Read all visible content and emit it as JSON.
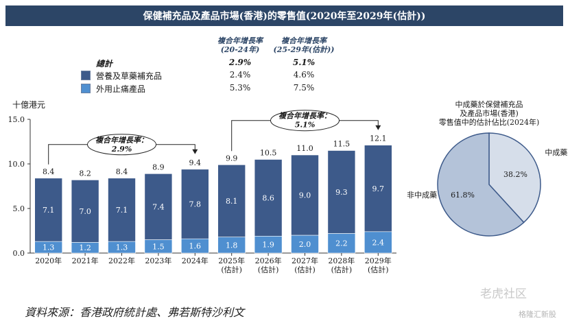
{
  "header": {
    "title": "保健補充品及產品市場(香港)的零售值(2020年至2029年(估計))"
  },
  "legend_table": {
    "col1_header": "複合年增長率\n(20-24年)",
    "col2_header": "複合年增長率\n(25-29年(估計))",
    "rows": [
      {
        "label": "總計",
        "cagr_20_24": "2.9%",
        "cagr_25_29": "5.1%"
      },
      {
        "label": "營養及草藥補充品",
        "cagr_20_24": "2.4%",
        "cagr_25_29": "4.6%",
        "color": "#3d5a8a"
      },
      {
        "label": "外用止痛產品",
        "cagr_20_24": "5.3%",
        "cagr_25_29": "7.5%",
        "color": "#4f8fd0"
      }
    ]
  },
  "chart_data": [
    {
      "type": "bar",
      "stacked": true,
      "ylabel": "十億港元",
      "ylim": [
        0,
        15
      ],
      "yticks": [
        "0.0",
        "5.0",
        "10.0",
        "15.0"
      ],
      "categories": [
        "2020年",
        "2021年",
        "2022年",
        "2023年",
        "2024年",
        "2025年\n(估計)",
        "2026年\n(估計)",
        "2027年\n(估計)",
        "2028年\n(估計)",
        "2029年\n(估計)"
      ],
      "series": [
        {
          "name": "外用止痛產品",
          "color": "#4f8fd0",
          "values": [
            1.3,
            1.2,
            1.3,
            1.5,
            1.6,
            1.8,
            1.9,
            2.0,
            2.2,
            2.4
          ],
          "labels": [
            "1.3",
            "1.2",
            "1.3",
            "1.5",
            "1.6",
            "1.8",
            "1.9",
            "2.0",
            "2.2",
            "2.4"
          ]
        },
        {
          "name": "營養及草藥補充品",
          "color": "#3d5a8a",
          "values": [
            7.1,
            7.0,
            7.1,
            7.4,
            7.8,
            8.1,
            8.6,
            9.0,
            9.3,
            9.7
          ],
          "labels": [
            "7.1",
            "7.0",
            "7.1",
            "7.4",
            "7.8",
            "8.1",
            "8.6",
            "9.0",
            "9.3",
            "9.7"
          ]
        }
      ],
      "totals": [
        8.4,
        8.2,
        8.4,
        8.9,
        9.4,
        9.9,
        10.5,
        11.0,
        11.5,
        12.1
      ],
      "total_labels": [
        "8.4",
        "8.2",
        "8.4",
        "8.9",
        "9.4",
        "9.9",
        "10.5",
        "11.0",
        "11.5",
        "12.1"
      ],
      "annotations": [
        {
          "text": "複合年增長率：\n2.9%",
          "from": 0,
          "to": 4
        },
        {
          "text": "複合年增長率：\n5.1%",
          "from": 5,
          "to": 9
        }
      ]
    },
    {
      "type": "pie",
      "title": "中成藥於保健補充品\n及產品市場(香港)\n零售值中的估計佔比(2024年)",
      "slices": [
        {
          "label": "中成藥",
          "value": 38.2,
          "value_label": "38.2%",
          "color": "#d6deea"
        },
        {
          "label": "非中成藥",
          "value": 61.8,
          "value_label": "61.8%",
          "color": "#b4c3d9"
        }
      ]
    }
  ],
  "source": "資料來源：香港政府統計處、弗若斯特沙利文",
  "watermark": {
    "main": "老虎社区",
    "sub": "格隆汇新股"
  }
}
